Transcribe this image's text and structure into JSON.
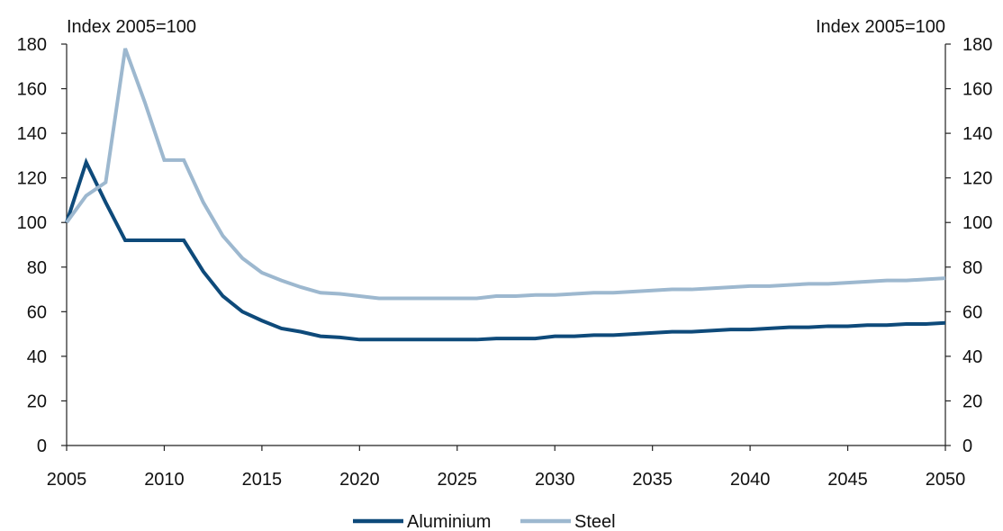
{
  "chart_data": {
    "type": "line",
    "left_axis_unit": "Index 2005=100",
    "right_axis_unit": "Index 2005=100",
    "xlim": [
      2005,
      2050
    ],
    "ylim": [
      0,
      180
    ],
    "x_ticks": [
      2005,
      2010,
      2015,
      2020,
      2025,
      2030,
      2035,
      2040,
      2045,
      2050
    ],
    "y_ticks": [
      0,
      20,
      40,
      60,
      80,
      100,
      120,
      140,
      160,
      180
    ],
    "grid": false,
    "legend_position": "bottom-center",
    "x": [
      2005,
      2006,
      2007,
      2008,
      2009,
      2010,
      2011,
      2012,
      2013,
      2014,
      2015,
      2016,
      2017,
      2018,
      2019,
      2020,
      2021,
      2022,
      2023,
      2024,
      2025,
      2026,
      2027,
      2028,
      2029,
      2030,
      2031,
      2032,
      2033,
      2034,
      2035,
      2036,
      2037,
      2038,
      2039,
      2040,
      2041,
      2042,
      2043,
      2044,
      2045,
      2046,
      2047,
      2048,
      2049,
      2050
    ],
    "series": [
      {
        "name": "Aluminium",
        "color": "#0e4a7a",
        "values": [
          100,
          127,
          109,
          92,
          92,
          92,
          92,
          78,
          67,
          60,
          56,
          52.5,
          51,
          49,
          48.5,
          47.5,
          47.5,
          47.5,
          47.5,
          47.5,
          47.5,
          47.5,
          48,
          48,
          48,
          49,
          49,
          49.5,
          49.5,
          50,
          50.5,
          51,
          51,
          51.5,
          52,
          52,
          52.5,
          53,
          53,
          53.5,
          53.5,
          54,
          54,
          54.5,
          54.5,
          55
        ]
      },
      {
        "name": "Steel",
        "color": "#9db8cf",
        "values": [
          100,
          112,
          118,
          178,
          154,
          128,
          128,
          109,
          94,
          84,
          77.5,
          74,
          71,
          68.5,
          68,
          67,
          66,
          66,
          66,
          66,
          66,
          66,
          67,
          67,
          67.5,
          67.5,
          68,
          68.5,
          68.5,
          69,
          69.5,
          70,
          70,
          70.5,
          71,
          71.5,
          71.5,
          72,
          72.5,
          72.5,
          73,
          73.5,
          74,
          74,
          74.5,
          75
        ]
      }
    ]
  }
}
